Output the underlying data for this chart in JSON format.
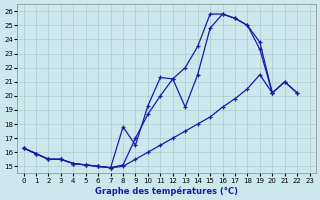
{
  "title": "Graphe des températures (°C)",
  "bg_color": "#cce8ec",
  "grid_color": "#aacccc",
  "line_color": "#1a1aaa",
  "xlim": [
    -0.5,
    23.5
  ],
  "ylim": [
    14.5,
    26.5
  ],
  "xticks": [
    0,
    1,
    2,
    3,
    4,
    5,
    6,
    7,
    8,
    9,
    10,
    11,
    12,
    13,
    14,
    15,
    16,
    17,
    18,
    19,
    20,
    21,
    22,
    23
  ],
  "yticks": [
    15,
    16,
    17,
    18,
    19,
    20,
    21,
    22,
    23,
    24,
    25,
    26
  ],
  "line1_x": [
    0,
    1,
    2,
    3,
    4,
    5,
    6,
    7,
    8,
    9,
    10,
    11,
    12,
    13,
    14,
    15,
    16,
    17,
    18,
    19,
    20,
    21,
    22
  ],
  "line1_y": [
    16.3,
    15.9,
    15.5,
    15.5,
    15.2,
    15.1,
    15.0,
    14.9,
    15.1,
    17.0,
    18.7,
    20.0,
    21.2,
    22.0,
    23.5,
    25.8,
    25.8,
    25.5,
    25.0,
    23.3,
    20.2,
    21.0,
    20.2
  ],
  "line2_x": [
    0,
    1,
    2,
    3,
    4,
    5,
    6,
    7,
    8,
    9,
    10,
    11,
    12,
    13,
    14,
    15,
    16,
    17,
    18,
    19,
    20
  ],
  "line2_y": [
    16.3,
    15.9,
    15.5,
    15.5,
    15.2,
    15.1,
    15.0,
    14.9,
    17.8,
    16.5,
    19.3,
    21.3,
    21.2,
    19.2,
    21.5,
    24.8,
    25.8,
    25.5,
    25.0,
    23.8,
    20.2
  ],
  "line3_x": [
    0,
    1,
    2,
    3,
    4,
    5,
    6,
    7,
    8,
    9,
    10,
    11,
    12,
    13,
    14,
    15,
    16,
    17,
    18,
    19,
    20,
    21,
    22
  ],
  "line3_y": [
    16.3,
    15.9,
    15.5,
    15.5,
    15.2,
    15.1,
    15.0,
    14.9,
    15.0,
    15.5,
    16.0,
    16.5,
    17.0,
    17.5,
    18.0,
    18.5,
    19.2,
    19.8,
    20.5,
    21.5,
    20.2,
    21.0,
    20.2
  ]
}
